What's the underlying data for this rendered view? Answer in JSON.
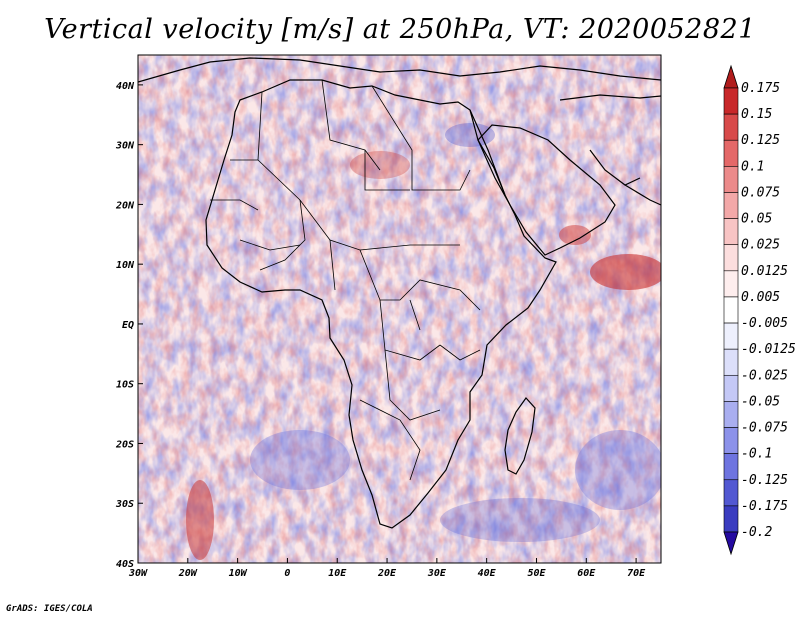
{
  "title": "Vertical velocity [m/s] at 250hPa, VT: 2020052821",
  "credit": "GrADS: IGES/COLA",
  "map": {
    "lon_range": [
      -30,
      75
    ],
    "lat_range": [
      -40,
      45
    ],
    "x_ticks": [
      {
        "value": -30,
        "label": "30W"
      },
      {
        "value": -20,
        "label": "20W"
      },
      {
        "value": -10,
        "label": "10W"
      },
      {
        "value": 0,
        "label": "0"
      },
      {
        "value": 10,
        "label": "10E"
      },
      {
        "value": 20,
        "label": "20E"
      },
      {
        "value": 30,
        "label": "30E"
      },
      {
        "value": 40,
        "label": "40E"
      },
      {
        "value": 50,
        "label": "50E"
      },
      {
        "value": 60,
        "label": "60E"
      },
      {
        "value": 70,
        "label": "70E"
      }
    ],
    "y_ticks": [
      {
        "value": 40,
        "label": "40N"
      },
      {
        "value": 30,
        "label": "30N"
      },
      {
        "value": 20,
        "label": "20N"
      },
      {
        "value": 10,
        "label": "10N"
      },
      {
        "value": 0,
        "label": "EQ"
      },
      {
        "value": -10,
        "label": "10S"
      },
      {
        "value": -20,
        "label": "20S"
      },
      {
        "value": -30,
        "label": "30S"
      },
      {
        "value": -40,
        "label": "40S"
      }
    ]
  },
  "colorbar": {
    "levels": [
      {
        "label": "0.175",
        "color": "#c8282a"
      },
      {
        "label": "0.15",
        "color": "#d84a4a"
      },
      {
        "label": "0.125",
        "color": "#e46868"
      },
      {
        "label": "0.1",
        "color": "#ec8a8a"
      },
      {
        "label": "0.075",
        "color": "#f3a8a8"
      },
      {
        "label": "0.05",
        "color": "#f8c4c4"
      },
      {
        "label": "0.025",
        "color": "#fcdede"
      },
      {
        "label": "0.0125",
        "color": "#feeeee"
      },
      {
        "label": "0.005",
        "color": "#ffffff"
      },
      {
        "label": "-0.005",
        "color": "#eef0fd"
      },
      {
        "label": "-0.0125",
        "color": "#dcdffa"
      },
      {
        "label": "-0.025",
        "color": "#c4c8f6"
      },
      {
        "label": "-0.05",
        "color": "#a9aef0"
      },
      {
        "label": "-0.075",
        "color": "#8c92ea"
      },
      {
        "label": "-0.1",
        "color": "#6e74e0"
      },
      {
        "label": "-0.125",
        "color": "#5258d2"
      },
      {
        "label": "-0.175",
        "color": "#3a3cc0"
      },
      {
        "label": "-0.2",
        "color": "#2a22a8"
      }
    ],
    "top_color": "#b01c1c",
    "bottom_color": "#240aa0"
  }
}
